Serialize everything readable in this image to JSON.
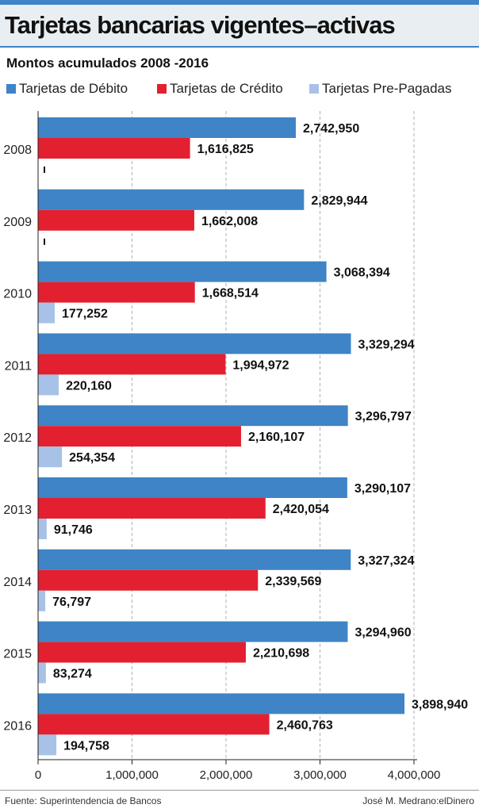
{
  "header": {
    "title": "Tarjetas bancarias vigentes–activas",
    "subtitle": "Montos acumulados 2008 -2016"
  },
  "footer": {
    "source": "Fuente: Superintendencia de Bancos",
    "credit": "José M. Medrano:elDinero"
  },
  "colors": {
    "debito": "#3e84c6",
    "credito": "#e3202f",
    "prepagadas": "#a7c2e6"
  },
  "chart_data": {
    "type": "bar",
    "orientation": "horizontal",
    "title": "Tarjetas bancarias vigentes–activas",
    "subtitle": "Montos acumulados 2008 -2016",
    "categories": [
      "2008",
      "2009",
      "2010",
      "2011",
      "2012",
      "2013",
      "2014",
      "2015",
      "2016"
    ],
    "series": [
      {
        "name": "Tarjetas de Débito",
        "color": "#3e84c6",
        "values": [
          2742950,
          2829944,
          3068394,
          3329294,
          3296797,
          3290107,
          3327324,
          3294960,
          3898940
        ],
        "labels": [
          "2,742,950",
          "2,829,944",
          "3,068,394",
          "3,329,294",
          "3,296,797",
          "3,290,107",
          "3,327,324",
          "3,294,960",
          "3,898,940"
        ]
      },
      {
        "name": "Tarjetas de Crédito",
        "color": "#e3202f",
        "values": [
          1616825,
          1662008,
          1668514,
          1994972,
          2160107,
          2420054,
          2339569,
          2210698,
          2460763
        ],
        "labels": [
          "1,616,825",
          "1,662,008",
          "1,668,514",
          "1,994,972",
          "2,160,107",
          "2,420,054",
          "2,339,569",
          "2,210,698",
          "2,460,763"
        ]
      },
      {
        "name": "Tarjetas Pre-Pagadas",
        "color": "#a7c2e6",
        "values": [
          null,
          null,
          177252,
          220160,
          254354,
          91746,
          76797,
          83274,
          194758
        ],
        "labels": [
          "",
          "",
          "177,252",
          "220,160",
          "254,354",
          "91,746",
          "76,797",
          "83,274",
          "194,758"
        ]
      }
    ],
    "xlim": [
      0,
      4000000
    ],
    "xticks": [
      0,
      1000000,
      2000000,
      3000000,
      4000000
    ],
    "xtick_labels": [
      "0",
      "1,000,000",
      "2,000,000",
      "3,000,000",
      "4,000,000"
    ],
    "legend_position": "top",
    "grid": "vertical-dashed"
  }
}
